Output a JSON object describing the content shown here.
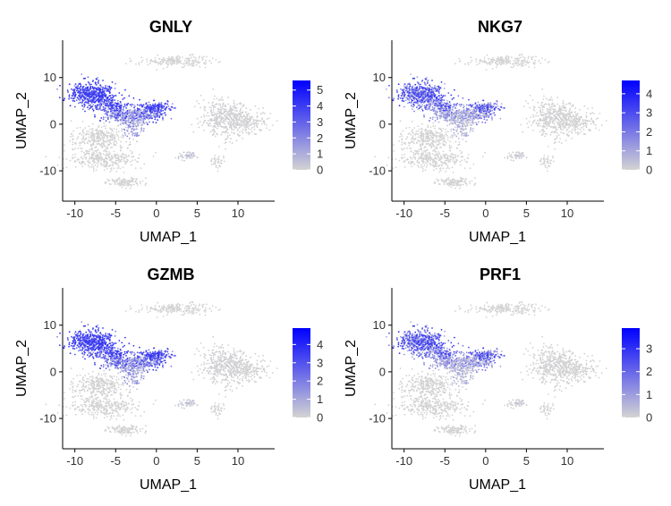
{
  "chart_data": [
    {
      "type": "scatter",
      "title": "GNLY",
      "xlabel": "UMAP_1",
      "ylabel": "UMAP_2",
      "xlim": [
        -11.5,
        14.5
      ],
      "ylim": [
        -16.5,
        18
      ],
      "xticks": [
        -10,
        -5,
        0,
        5,
        10
      ],
      "yticks": [
        -10,
        0,
        10
      ],
      "grid": false,
      "legend_position": "right",
      "color_low": "#d3d3d3",
      "color_high": "#0000ff",
      "scale_min": 0,
      "scale_max": 5.6,
      "legend_ticks": [
        0,
        1,
        2,
        3,
        4,
        5
      ]
    },
    {
      "type": "scatter",
      "title": "NKG7",
      "xlabel": "UMAP_1",
      "ylabel": "UMAP_2",
      "xlim": [
        -11.5,
        14.5
      ],
      "ylim": [
        -16.5,
        18
      ],
      "xticks": [
        -10,
        -5,
        0,
        5,
        10
      ],
      "yticks": [
        -10,
        0,
        10
      ],
      "grid": false,
      "legend_position": "right",
      "color_low": "#d3d3d3",
      "color_high": "#0000ff",
      "scale_min": 0,
      "scale_max": 4.7,
      "legend_ticks": [
        0,
        1,
        2,
        3,
        4
      ]
    },
    {
      "type": "scatter",
      "title": "GZMB",
      "xlabel": "UMAP_1",
      "ylabel": "UMAP_2",
      "xlim": [
        -11.5,
        14.5
      ],
      "ylim": [
        -16.5,
        18
      ],
      "xticks": [
        -10,
        -5,
        0,
        5,
        10
      ],
      "yticks": [
        -10,
        0,
        10
      ],
      "grid": false,
      "legend_position": "right",
      "color_low": "#d3d3d3",
      "color_high": "#0000ff",
      "scale_min": 0,
      "scale_max": 4.9,
      "legend_ticks": [
        0,
        1,
        2,
        3,
        4
      ]
    },
    {
      "type": "scatter",
      "title": "PRF1",
      "xlabel": "UMAP_1",
      "ylabel": "UMAP_2",
      "xlim": [
        -11.5,
        14.5
      ],
      "ylim": [
        -16.5,
        18
      ],
      "xticks": [
        -10,
        -5,
        0,
        5,
        10
      ],
      "yticks": [
        -10,
        0,
        10
      ],
      "grid": false,
      "legend_position": "right",
      "color_low": "#d3d3d3",
      "color_high": "#0000ff",
      "scale_min": 0,
      "scale_max": 3.9,
      "legend_ticks": [
        0,
        1,
        2,
        3
      ]
    }
  ]
}
